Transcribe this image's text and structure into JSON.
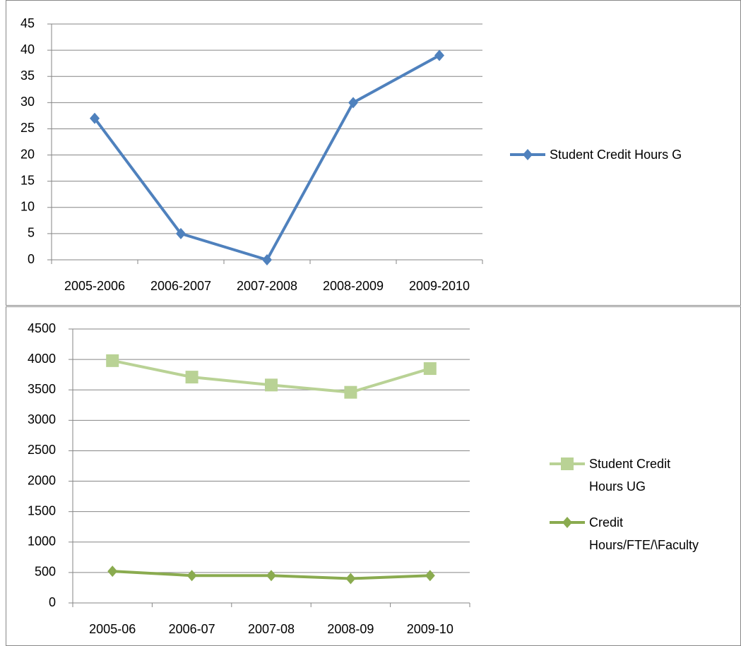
{
  "chart_data": [
    {
      "type": "line",
      "categories": [
        "2005-2006",
        "2006-2007",
        "2007-2008",
        "2008-2009",
        "2009-2010"
      ],
      "series": [
        {
          "name": "Student Credit Hours G",
          "color": "#4f81bd",
          "marker": "diamond",
          "values": [
            27,
            5,
            0,
            30,
            39
          ]
        }
      ],
      "ylim": [
        0,
        45
      ],
      "yticks": [
        0,
        5,
        10,
        15,
        20,
        25,
        30,
        35,
        40,
        45
      ],
      "grid": true,
      "legend": "right"
    },
    {
      "type": "line",
      "categories": [
        "2005-06",
        "2006-07",
        "2007-08",
        "2008-09",
        "2009-10"
      ],
      "series": [
        {
          "name": "Student Credit Hours UG",
          "color": "#b9d295",
          "marker": "square",
          "values": [
            3980,
            3710,
            3580,
            3460,
            3850
          ]
        },
        {
          "name": "Credit Hours/FTE/\\Faculty",
          "color": "#8aab4f",
          "marker": "diamond",
          "values": [
            520,
            450,
            450,
            400,
            450
          ]
        }
      ],
      "ylim": [
        0,
        4500
      ],
      "yticks": [
        0,
        500,
        1000,
        1500,
        2000,
        2500,
        3000,
        3500,
        4000,
        4500
      ],
      "grid": true,
      "legend": "right"
    }
  ]
}
